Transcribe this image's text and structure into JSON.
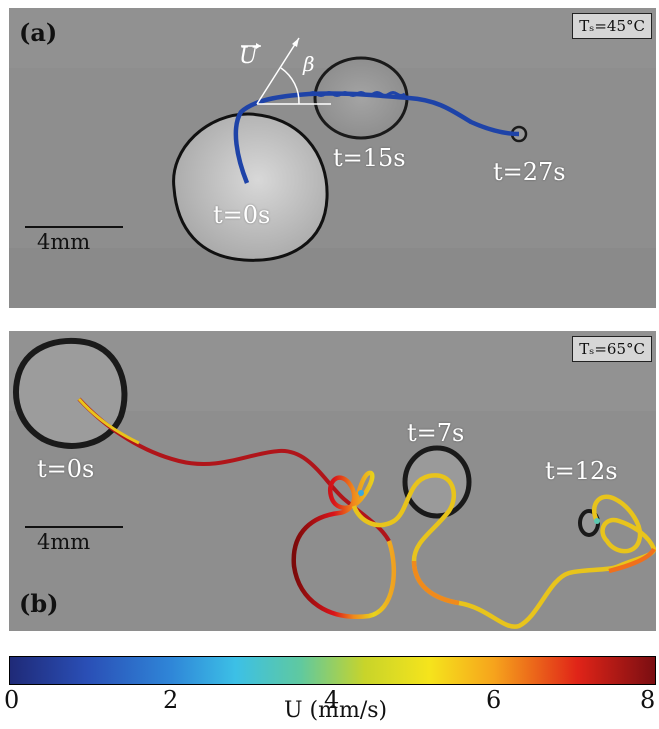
{
  "panel_a": {
    "label": "(a)",
    "temperature": "Tₛ=45°C",
    "time_labels": [
      "t=0s",
      "t=15s",
      "t=27s"
    ],
    "scale_bar": "4mm",
    "velocity_symbol": "U",
    "angle_symbol": "β",
    "trajectory_color": "#1e43a8"
  },
  "panel_b": {
    "label": "(b)",
    "temperature": "Tₛ=65°C",
    "time_labels": [
      "t=0s",
      "t=7s",
      "t=12s"
    ],
    "scale_bar": "4mm"
  },
  "colorbar": {
    "ticks": [
      "0",
      "2",
      "4",
      "6",
      "8"
    ],
    "label": "U (mm/s)",
    "colormap": "jet",
    "range": [
      0,
      8
    ]
  }
}
